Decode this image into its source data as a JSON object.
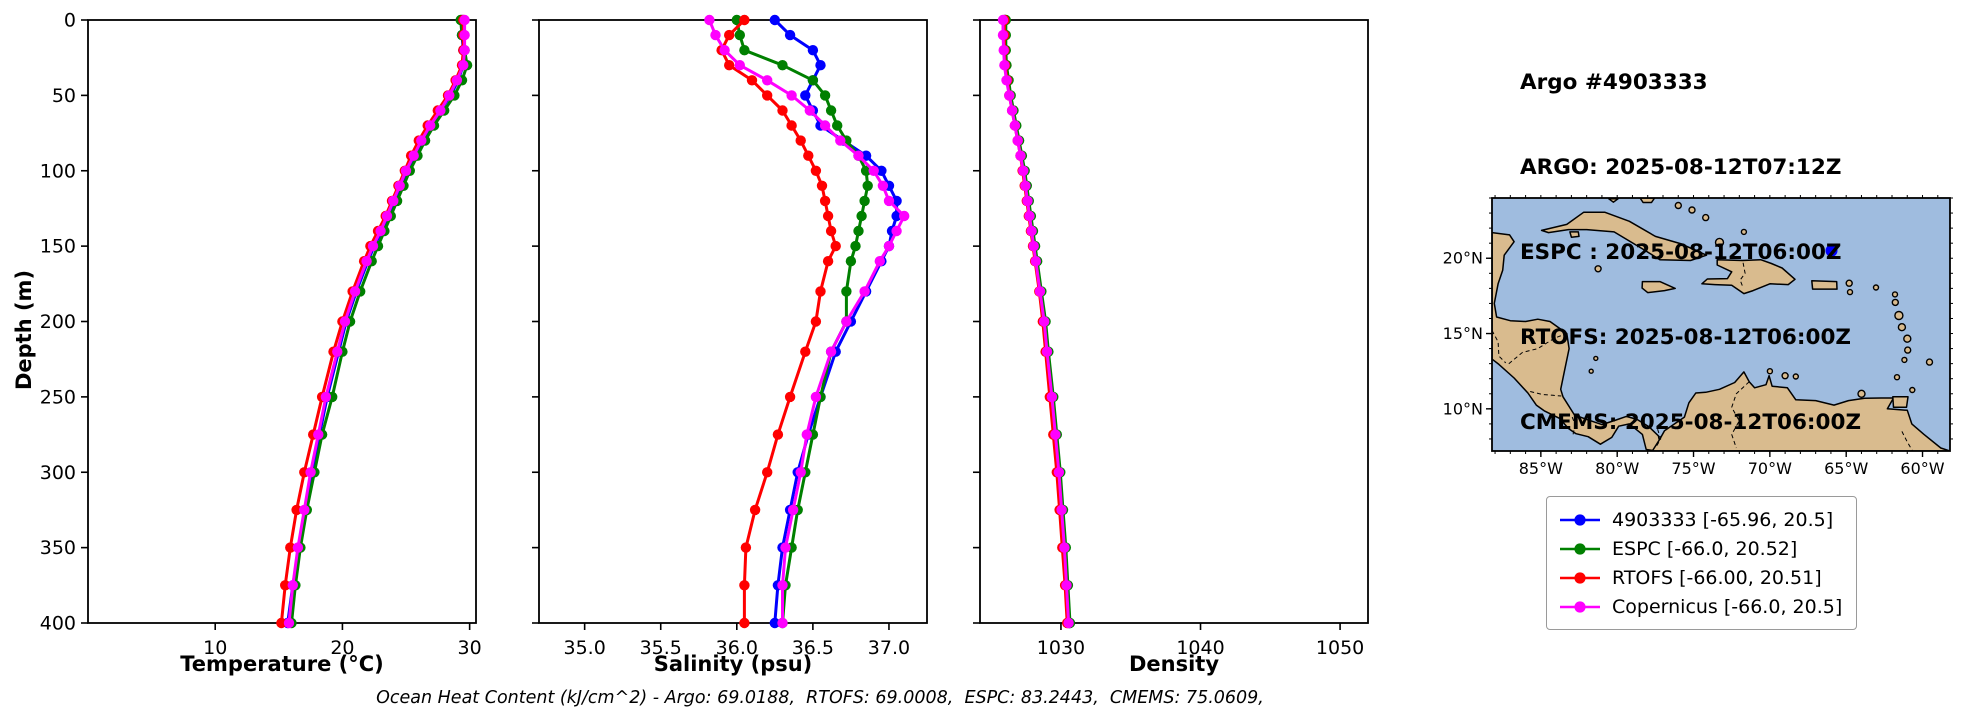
{
  "info_panel": {
    "title": "Argo #4903333",
    "lines": [
      "ARGO: 2025-08-12T07:12Z",
      "ESPC : 2025-08-12T06:00Z",
      "RTOFS: 2025-08-12T06:00Z",
      "CMEMS: 2025-08-12T06:00Z"
    ]
  },
  "footer": {
    "ohc_text": "Ocean Heat Content (kJ/cm^2) - Argo: 69.0188,  RTOFS: 69.0008,  ESPC: 83.2443,  CMEMS: 75.0609,"
  },
  "legend": {
    "items": [
      {
        "label": "4903333 [-65.96, 20.5]",
        "color": "#0000ff"
      },
      {
        "label": "ESPC [-66.0, 20.52]",
        "color": "#008000"
      },
      {
        "label": "RTOFS [-66.00, 20.51]",
        "color": "#ff0000"
      },
      {
        "label": "Copernicus [-66.0, 20.5]",
        "color": "#ff00ff"
      }
    ]
  },
  "map": {
    "lon_range": [
      -88.2,
      -58.2
    ],
    "lat_range": [
      7.2,
      24.0
    ],
    "ocean_color": "#9fbcdf",
    "land_color": "#d9bb8e",
    "xticks": [
      {
        "value": -85,
        "label": "85°W"
      },
      {
        "value": -80,
        "label": "80°W"
      },
      {
        "value": -75,
        "label": "75°W"
      },
      {
        "value": -70,
        "label": "70°W"
      },
      {
        "value": -65,
        "label": "65°W"
      },
      {
        "value": -60,
        "label": "60°W"
      }
    ],
    "yticks": [
      {
        "value": 20,
        "label": "20°N"
      },
      {
        "value": 15,
        "label": "15°N"
      },
      {
        "value": 10,
        "label": "10°N"
      }
    ],
    "marker": {
      "lon": -65.96,
      "lat": 20.5,
      "color": "#0000ff"
    }
  },
  "chart_data": [
    {
      "type": "line",
      "xlabel": "Temperature (°C)",
      "ylabel": "Depth (m)",
      "xlim": [
        0.0,
        30.5
      ],
      "ylim": [
        400,
        0
      ],
      "xticks": [
        {
          "value": 10,
          "label": "10"
        },
        {
          "value": 20,
          "label": "20"
        },
        {
          "value": 30,
          "label": "30"
        }
      ],
      "yticks": [
        {
          "value": 0,
          "label": "0"
        },
        {
          "value": 50,
          "label": "50"
        },
        {
          "value": 100,
          "label": "100"
        },
        {
          "value": 150,
          "label": "150"
        },
        {
          "value": 200,
          "label": "200"
        },
        {
          "value": 250,
          "label": "250"
        },
        {
          "value": 300,
          "label": "300"
        },
        {
          "value": 350,
          "label": "350"
        },
        {
          "value": 400,
          "label": "400"
        }
      ],
      "depths": [
        0,
        10,
        20,
        30,
        40,
        50,
        60,
        70,
        80,
        90,
        100,
        110,
        120,
        130,
        140,
        150,
        160,
        180,
        200,
        220,
        250,
        275,
        300,
        325,
        350,
        375,
        400
      ],
      "series": [
        {
          "name": "4903333",
          "color": "#0000ff",
          "values": [
            29.4,
            29.4,
            29.5,
            29.5,
            29.1,
            28.5,
            27.7,
            27.0,
            26.3,
            25.7,
            25.1,
            24.6,
            24.1,
            23.6,
            23.1,
            22.5,
            22.0,
            21.1,
            20.3,
            19.7,
            18.8,
            18.2,
            17.6,
            17.1,
            16.6,
            16.1,
            15.7
          ]
        },
        {
          "name": "ESPC",
          "color": "#008000",
          "values": [
            29.3,
            29.4,
            29.6,
            29.8,
            29.4,
            28.8,
            28.0,
            27.2,
            26.5,
            25.9,
            25.3,
            24.8,
            24.3,
            23.8,
            23.3,
            22.8,
            22.3,
            21.4,
            20.6,
            20.0,
            19.2,
            18.4,
            17.8,
            17.2,
            16.7,
            16.3,
            16.0
          ]
        },
        {
          "name": "RTOFS",
          "color": "#ff0000",
          "values": [
            29.5,
            29.5,
            29.5,
            29.4,
            28.9,
            28.3,
            27.5,
            26.7,
            26.0,
            25.4,
            24.9,
            24.4,
            23.9,
            23.4,
            22.8,
            22.2,
            21.7,
            20.8,
            20.0,
            19.3,
            18.4,
            17.7,
            17.0,
            16.4,
            15.9,
            15.5,
            15.2
          ]
        },
        {
          "name": "Copernicus",
          "color": "#ff00ff",
          "values": [
            29.6,
            29.6,
            29.6,
            29.5,
            29.0,
            28.4,
            27.7,
            26.9,
            26.2,
            25.6,
            25.0,
            24.5,
            24.0,
            23.5,
            23.0,
            22.4,
            21.9,
            21.0,
            20.2,
            19.6,
            18.7,
            18.1,
            17.5,
            17.0,
            16.5,
            16.1,
            15.8
          ]
        }
      ]
    },
    {
      "type": "line",
      "xlabel": "Salinity (psu)",
      "ylabel": "Depth (m)",
      "xlim": [
        34.7,
        37.25
      ],
      "ylim": [
        400,
        0
      ],
      "xticks": [
        {
          "value": 35.0,
          "label": "35.0"
        },
        {
          "value": 35.5,
          "label": "35.5"
        },
        {
          "value": 36.0,
          "label": "36.0"
        },
        {
          "value": 36.5,
          "label": "36.5"
        },
        {
          "value": 37.0,
          "label": "37.0"
        }
      ],
      "depths": [
        0,
        10,
        20,
        30,
        40,
        50,
        60,
        70,
        80,
        90,
        100,
        110,
        120,
        130,
        140,
        150,
        160,
        180,
        200,
        220,
        250,
        275,
        300,
        325,
        350,
        375,
        400
      ],
      "series": [
        {
          "name": "4903333",
          "color": "#0000ff",
          "values": [
            36.25,
            36.35,
            36.5,
            36.55,
            36.5,
            36.45,
            36.5,
            36.55,
            36.7,
            36.85,
            36.95,
            37.0,
            37.05,
            37.05,
            37.02,
            37.0,
            36.95,
            36.85,
            36.75,
            36.65,
            36.55,
            36.47,
            36.4,
            36.35,
            36.3,
            36.27,
            36.25
          ]
        },
        {
          "name": "ESPC",
          "color": "#008000",
          "values": [
            36.0,
            36.02,
            36.05,
            36.3,
            36.5,
            36.58,
            36.62,
            36.66,
            36.72,
            36.8,
            36.85,
            36.86,
            36.84,
            36.82,
            36.8,
            36.78,
            36.75,
            36.72,
            36.72,
            36.62,
            36.55,
            36.5,
            36.45,
            36.4,
            36.36,
            36.32,
            36.3
          ]
        },
        {
          "name": "RTOFS",
          "color": "#ff0000",
          "values": [
            36.05,
            35.95,
            35.9,
            35.95,
            36.1,
            36.2,
            36.3,
            36.36,
            36.42,
            36.47,
            36.52,
            36.56,
            36.58,
            36.6,
            36.62,
            36.65,
            36.6,
            36.55,
            36.52,
            36.45,
            36.35,
            36.27,
            36.2,
            36.12,
            36.06,
            36.05,
            36.05
          ]
        },
        {
          "name": "Copernicus",
          "color": "#ff00ff",
          "values": [
            35.82,
            35.86,
            35.92,
            36.02,
            36.2,
            36.36,
            36.48,
            36.58,
            36.68,
            36.8,
            36.9,
            36.96,
            37.0,
            37.1,
            37.05,
            37.0,
            36.94,
            36.84,
            36.72,
            36.62,
            36.52,
            36.46,
            36.42,
            36.37,
            36.32,
            36.3,
            36.3
          ]
        }
      ]
    },
    {
      "type": "line",
      "xlabel": "Density",
      "ylabel": "Depth (m)",
      "xlim": [
        1024.2,
        1052.0
      ],
      "ylim": [
        400,
        0
      ],
      "xticks": [
        {
          "value": 1030,
          "label": "1030"
        },
        {
          "value": 1040,
          "label": "1040"
        },
        {
          "value": 1050,
          "label": "1050"
        }
      ],
      "depths": [
        0,
        10,
        20,
        30,
        40,
        50,
        60,
        70,
        80,
        90,
        100,
        110,
        120,
        130,
        140,
        150,
        160,
        180,
        200,
        220,
        250,
        275,
        300,
        325,
        350,
        375,
        400
      ],
      "series": [
        {
          "name": "4903333",
          "color": "#0000ff",
          "values": [
            1026.0,
            1026.0,
            1026.0,
            1026.05,
            1026.2,
            1026.35,
            1026.55,
            1026.75,
            1026.95,
            1027.15,
            1027.35,
            1027.5,
            1027.65,
            1027.8,
            1027.95,
            1028.1,
            1028.25,
            1028.55,
            1028.85,
            1029.05,
            1029.4,
            1029.65,
            1029.9,
            1030.1,
            1030.3,
            1030.45,
            1030.6
          ]
        },
        {
          "name": "ESPC",
          "color": "#008000",
          "values": [
            1026.05,
            1026.05,
            1026.05,
            1026.1,
            1026.25,
            1026.4,
            1026.6,
            1026.8,
            1027.0,
            1027.2,
            1027.4,
            1027.55,
            1027.7,
            1027.85,
            1028.0,
            1028.15,
            1028.3,
            1028.6,
            1028.9,
            1029.1,
            1029.45,
            1029.7,
            1029.95,
            1030.15,
            1030.35,
            1030.5,
            1030.65
          ]
        },
        {
          "name": "RTOFS",
          "color": "#ff0000",
          "values": [
            1025.95,
            1025.95,
            1025.95,
            1026.0,
            1026.15,
            1026.3,
            1026.5,
            1026.7,
            1026.9,
            1027.1,
            1027.25,
            1027.4,
            1027.55,
            1027.7,
            1027.85,
            1028.0,
            1028.15,
            1028.45,
            1028.7,
            1028.9,
            1029.2,
            1029.45,
            1029.7,
            1029.9,
            1030.1,
            1030.3,
            1030.45
          ]
        },
        {
          "name": "Copernicus",
          "color": "#ff00ff",
          "values": [
            1025.85,
            1025.85,
            1025.9,
            1025.95,
            1026.1,
            1026.3,
            1026.5,
            1026.7,
            1026.9,
            1027.1,
            1027.3,
            1027.45,
            1027.6,
            1027.75,
            1027.9,
            1028.05,
            1028.2,
            1028.5,
            1028.8,
            1029.0,
            1029.35,
            1029.6,
            1029.85,
            1030.05,
            1030.25,
            1030.4,
            1030.55
          ]
        }
      ]
    }
  ]
}
